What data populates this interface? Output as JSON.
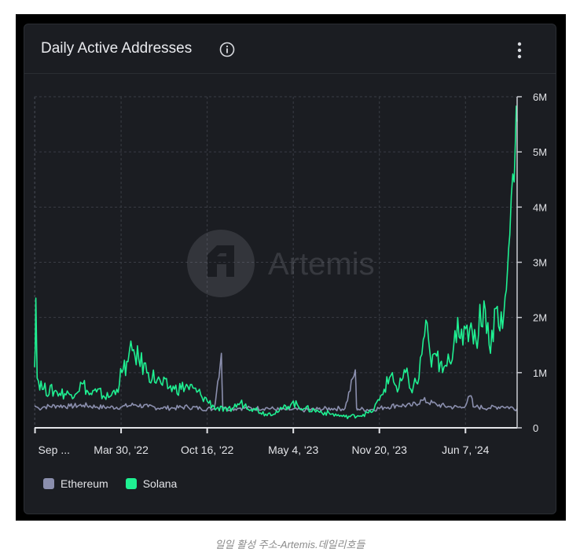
{
  "card": {
    "title": "Daily Active Addresses",
    "info_icon": "info-circle-icon",
    "menu_icon": "vertical-ellipsis-icon",
    "watermark": "Artemis"
  },
  "caption": "일일 활성 주소-Artemis.데일리호들",
  "colors": {
    "background": "#1b1d22",
    "ethereum": "#8b8fae",
    "solana": "#1ff092",
    "grid": "#3a3d45",
    "text": "#e3e4e8"
  },
  "chart_data": {
    "type": "line",
    "title": "Daily Active Addresses",
    "xlabel": "",
    "ylabel": "",
    "x_axis": {
      "type": "date",
      "min": "2021-09-10",
      "max": "2024-10-05",
      "tick_labels": [
        "Sep ...",
        "Mar 30, '22",
        "Oct 16, '22",
        "May 4, '23",
        "Nov 20, '23",
        "Jun 7, '24"
      ],
      "tick_dates": [
        "2021-09-11",
        "2022-03-30",
        "2022-10-16",
        "2023-05-04",
        "2023-11-20",
        "2024-06-07"
      ]
    },
    "y_axis": {
      "position": "right",
      "min": 0,
      "max": 6000000,
      "tick_values": [
        0,
        1000000,
        2000000,
        3000000,
        4000000,
        5000000,
        6000000
      ],
      "tick_labels": [
        "0",
        "1M",
        "2M",
        "3M",
        "4M",
        "5M",
        "6M"
      ]
    },
    "grid": true,
    "legend_position": "bottom-left",
    "series": [
      {
        "name": "Ethereum",
        "color": "#8b8fae",
        "points": [
          [
            "2021-09-10",
            400000
          ],
          [
            "2021-09-20",
            350000
          ],
          [
            "2021-10-01",
            380000
          ],
          [
            "2021-11-01",
            400000
          ],
          [
            "2021-12-01",
            390000
          ],
          [
            "2022-01-01",
            410000
          ],
          [
            "2022-02-01",
            380000
          ],
          [
            "2022-03-01",
            370000
          ],
          [
            "2022-04-01",
            380000
          ],
          [
            "2022-05-01",
            420000
          ],
          [
            "2022-06-01",
            380000
          ],
          [
            "2022-07-01",
            360000
          ],
          [
            "2022-08-01",
            360000
          ],
          [
            "2022-09-01",
            380000
          ],
          [
            "2022-10-01",
            350000
          ],
          [
            "2022-11-01",
            340000
          ],
          [
            "2022-11-18",
            1350000
          ],
          [
            "2022-11-21",
            380000
          ],
          [
            "2022-12-01",
            340000
          ],
          [
            "2023-01-01",
            360000
          ],
          [
            "2023-02-01",
            350000
          ],
          [
            "2023-03-01",
            360000
          ],
          [
            "2023-04-01",
            330000
          ],
          [
            "2023-05-01",
            330000
          ],
          [
            "2023-06-01",
            320000
          ],
          [
            "2023-07-01",
            340000
          ],
          [
            "2023-08-01",
            350000
          ],
          [
            "2023-09-01",
            350000
          ],
          [
            "2023-09-25",
            1050000
          ],
          [
            "2023-09-28",
            360000
          ],
          [
            "2023-10-01",
            340000
          ],
          [
            "2023-11-01",
            330000
          ],
          [
            "2023-12-01",
            370000
          ],
          [
            "2024-01-01",
            410000
          ],
          [
            "2024-02-01",
            400000
          ],
          [
            "2024-03-01",
            500000
          ],
          [
            "2024-04-01",
            420000
          ],
          [
            "2024-05-01",
            380000
          ],
          [
            "2024-06-01",
            370000
          ],
          [
            "2024-06-20",
            580000
          ],
          [
            "2024-06-25",
            380000
          ],
          [
            "2024-07-01",
            380000
          ],
          [
            "2024-08-01",
            360000
          ],
          [
            "2024-09-01",
            390000
          ],
          [
            "2024-10-05",
            350000
          ]
        ]
      },
      {
        "name": "Solana",
        "color": "#1ff092",
        "points": [
          [
            "2021-09-10",
            1100000
          ],
          [
            "2021-09-13",
            2350000
          ],
          [
            "2021-09-16",
            900000
          ],
          [
            "2021-10-01",
            700000
          ],
          [
            "2021-11-01",
            650000
          ],
          [
            "2021-12-01",
            600000
          ],
          [
            "2022-01-01",
            800000
          ],
          [
            "2022-01-15",
            600000
          ],
          [
            "2022-02-01",
            650000
          ],
          [
            "2022-03-01",
            550000
          ],
          [
            "2022-03-20",
            700000
          ],
          [
            "2022-04-01",
            1000000
          ],
          [
            "2022-04-15",
            1200000
          ],
          [
            "2022-04-25",
            1400000
          ],
          [
            "2022-05-10",
            1250000
          ],
          [
            "2022-06-01",
            1000000
          ],
          [
            "2022-07-01",
            800000
          ],
          [
            "2022-08-01",
            700000
          ],
          [
            "2022-09-01",
            750000
          ],
          [
            "2022-10-01",
            600000
          ],
          [
            "2022-11-01",
            380000
          ],
          [
            "2022-12-01",
            300000
          ],
          [
            "2023-01-01",
            450000
          ],
          [
            "2023-02-01",
            350000
          ],
          [
            "2023-03-01",
            250000
          ],
          [
            "2023-04-01",
            300000
          ],
          [
            "2023-05-01",
            450000
          ],
          [
            "2023-06-01",
            350000
          ],
          [
            "2023-07-01",
            300000
          ],
          [
            "2023-08-01",
            250000
          ],
          [
            "2023-09-01",
            200000
          ],
          [
            "2023-10-01",
            220000
          ],
          [
            "2023-11-01",
            280000
          ],
          [
            "2023-11-20",
            500000
          ],
          [
            "2023-12-01",
            700000
          ],
          [
            "2023-12-20",
            1000000
          ],
          [
            "2024-01-01",
            650000
          ],
          [
            "2024-01-20",
            1000000
          ],
          [
            "2024-02-01",
            700000
          ],
          [
            "2024-02-20",
            900000
          ],
          [
            "2024-03-01",
            1600000
          ],
          [
            "2024-03-10",
            1900000
          ],
          [
            "2024-03-20",
            1100000
          ],
          [
            "2024-04-01",
            1300000
          ],
          [
            "2024-04-15",
            1000000
          ],
          [
            "2024-05-01",
            1200000
          ],
          [
            "2024-05-20",
            2000000
          ],
          [
            "2024-06-01",
            1500000
          ],
          [
            "2024-06-20",
            1900000
          ],
          [
            "2024-07-01",
            1600000
          ],
          [
            "2024-07-20",
            2300000
          ],
          [
            "2024-08-01",
            1500000
          ],
          [
            "2024-08-20",
            2200000
          ],
          [
            "2024-09-01",
            1800000
          ],
          [
            "2024-09-10",
            2500000
          ],
          [
            "2024-09-18",
            3500000
          ],
          [
            "2024-09-25",
            4600000
          ],
          [
            "2024-10-01",
            5200000
          ],
          [
            "2024-10-05",
            5550000
          ]
        ]
      }
    ]
  }
}
